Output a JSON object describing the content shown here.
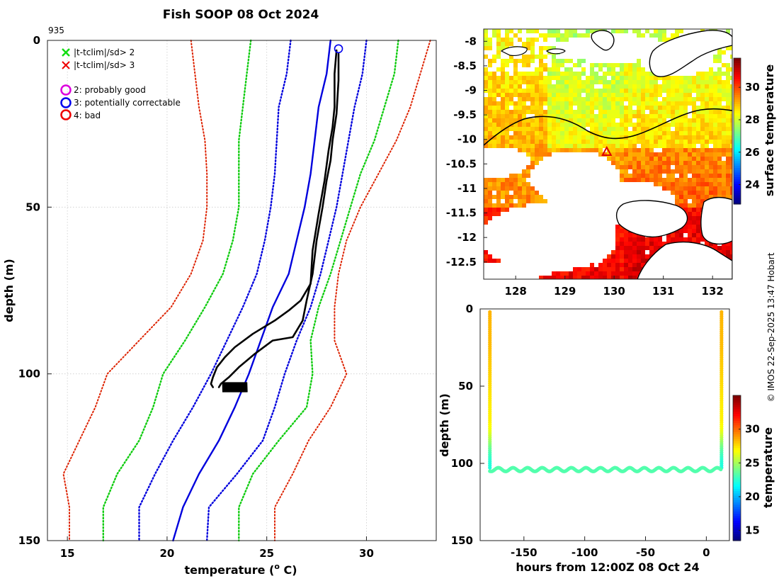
{
  "title": "Fish SOOP 08 Oct 2024",
  "profile_id": "935",
  "credit": "© IMOS 22-Sep-2025 13:47 Hobart",
  "colors": {
    "profile": "#000000",
    "clim": "#0000dd",
    "sd2": "#0000dd",
    "sd3": "#11cc11",
    "sd5": "#dd2200",
    "qc2": "#dd00dd",
    "qc3": "#0000ee",
    "qc4": "#ee0000",
    "x_green": "#11dd11",
    "x_red": "#ee0000"
  },
  "legend": {
    "flag2": "|t-tclim|/sd> 2",
    "flag3": "|t-tclim|/sd> 3",
    "qc2": "2: probably good",
    "qc3": "3: potentially correctable",
    "qc4": "4: bad"
  },
  "chart_data": [
    {
      "type": "line",
      "name": "temperature-profile",
      "xlabel": "temperature (o C)",
      "xlabel_main": "temperature (",
      "xlabel_sup": "o",
      "xlabel_end": " C)",
      "ylabel": "depth (m)",
      "xlim": [
        14,
        33.5
      ],
      "ylim": [
        150,
        0
      ],
      "xticks": [
        15,
        20,
        25,
        30
      ],
      "yticks": [
        0,
        50,
        100,
        150
      ],
      "grid": true,
      "series": [
        {
          "name": "climatology",
          "style": "solid-blue",
          "points": [
            [
              28.2,
              0
            ],
            [
              28,
              10
            ],
            [
              27.6,
              20
            ],
            [
              27.4,
              30
            ],
            [
              27.2,
              40
            ],
            [
              26.9,
              50
            ],
            [
              26.5,
              60
            ],
            [
              26.1,
              70
            ],
            [
              25.3,
              80
            ],
            [
              24.7,
              90
            ],
            [
              24.1,
              100
            ],
            [
              23.4,
              110
            ],
            [
              22.6,
              120
            ],
            [
              21.6,
              130
            ],
            [
              20.8,
              140
            ],
            [
              20.3,
              150
            ]
          ]
        },
        {
          "name": "clim-minus-2sd",
          "style": "dotted-blue",
          "points": [
            [
              26.2,
              0
            ],
            [
              26,
              10
            ],
            [
              25.6,
              20
            ],
            [
              25.5,
              30
            ],
            [
              25.4,
              40
            ],
            [
              25.2,
              50
            ],
            [
              24.9,
              60
            ],
            [
              24.5,
              70
            ],
            [
              23.8,
              80
            ],
            [
              23,
              90
            ],
            [
              22.2,
              100
            ],
            [
              21.3,
              110
            ],
            [
              20.3,
              120
            ],
            [
              19.4,
              130
            ],
            [
              18.6,
              140
            ],
            [
              18.6,
              150
            ]
          ]
        },
        {
          "name": "clim-plus-2sd",
          "style": "dotted-blue",
          "points": [
            [
              30,
              0
            ],
            [
              29.8,
              10
            ],
            [
              29.4,
              20
            ],
            [
              29.1,
              30
            ],
            [
              28.8,
              40
            ],
            [
              28.5,
              50
            ],
            [
              28.1,
              60
            ],
            [
              27.7,
              70
            ],
            [
              27.2,
              80
            ],
            [
              26.5,
              90
            ],
            [
              25.9,
              100
            ],
            [
              25.4,
              110
            ],
            [
              24.8,
              120
            ],
            [
              23.5,
              130
            ],
            [
              22.1,
              140
            ],
            [
              22,
              150
            ]
          ]
        },
        {
          "name": "clim-minus-3sd",
          "style": "dotted-green",
          "points": [
            [
              24.2,
              0
            ],
            [
              24,
              10
            ],
            [
              23.8,
              20
            ],
            [
              23.6,
              30
            ],
            [
              23.6,
              40
            ],
            [
              23.6,
              50
            ],
            [
              23.3,
              60
            ],
            [
              22.8,
              70
            ],
            [
              21.9,
              80
            ],
            [
              20.9,
              90
            ],
            [
              19.8,
              100
            ],
            [
              19.3,
              110
            ],
            [
              18.6,
              120
            ],
            [
              17.5,
              130
            ],
            [
              16.8,
              140
            ],
            [
              16.8,
              150
            ]
          ]
        },
        {
          "name": "clim-plus-3sd",
          "style": "dotted-green",
          "points": [
            [
              31.6,
              0
            ],
            [
              31.4,
              10
            ],
            [
              30.9,
              20
            ],
            [
              30.4,
              30
            ],
            [
              29.7,
              40
            ],
            [
              29.2,
              50
            ],
            [
              28.7,
              60
            ],
            [
              28.2,
              70
            ],
            [
              27.6,
              80
            ],
            [
              27.2,
              90
            ],
            [
              27.3,
              100
            ],
            [
              27,
              110
            ],
            [
              25.6,
              120
            ],
            [
              24.3,
              130
            ],
            [
              23.6,
              140
            ],
            [
              23.6,
              150
            ]
          ]
        },
        {
          "name": "clim-minus-5sd",
          "style": "dotted-red",
          "points": [
            [
              21.2,
              0
            ],
            [
              21.4,
              10
            ],
            [
              21.6,
              20
            ],
            [
              21.9,
              30
            ],
            [
              22,
              40
            ],
            [
              22,
              50
            ],
            [
              21.8,
              60
            ],
            [
              21.2,
              70
            ],
            [
              20.2,
              80
            ],
            [
              18.6,
              90
            ],
            [
              17,
              100
            ],
            [
              16.4,
              110
            ],
            [
              15.6,
              120
            ],
            [
              14.8,
              130
            ],
            [
              15.1,
              140
            ],
            [
              15.1,
              150
            ]
          ]
        },
        {
          "name": "clim-plus-5sd",
          "style": "dotted-red",
          "points": [
            [
              33.2,
              0
            ],
            [
              32.7,
              10
            ],
            [
              32.2,
              20
            ],
            [
              31.5,
              30
            ],
            [
              30.6,
              40
            ],
            [
              29.7,
              50
            ],
            [
              29,
              60
            ],
            [
              28.6,
              70
            ],
            [
              28.4,
              80
            ],
            [
              28.4,
              90
            ],
            [
              29,
              100
            ],
            [
              28.2,
              110
            ],
            [
              27.1,
              120
            ],
            [
              26.3,
              130
            ],
            [
              25.4,
              140
            ],
            [
              25.4,
              150
            ]
          ]
        },
        {
          "name": "profile-descent",
          "style": "solid-black",
          "points": [
            [
              28.5,
              3
            ],
            [
              28.4,
              10
            ],
            [
              28.4,
              20
            ],
            [
              28.3,
              26
            ],
            [
              28.1,
              33
            ],
            [
              27.9,
              42
            ],
            [
              27.6,
              52
            ],
            [
              27.3,
              63
            ],
            [
              27.2,
              73
            ],
            [
              26.7,
              78
            ],
            [
              26.1,
              81
            ],
            [
              25.4,
              84
            ],
            [
              24.3,
              88
            ],
            [
              23.4,
              92
            ],
            [
              22.9,
              95
            ],
            [
              22.5,
              98
            ],
            [
              22.3,
              101
            ],
            [
              22.2,
              103
            ],
            [
              22.3,
              104
            ]
          ]
        },
        {
          "name": "profile-ascent",
          "style": "solid-black",
          "points": [
            [
              28.6,
              4
            ],
            [
              28.6,
              12
            ],
            [
              28.5,
              22
            ],
            [
              28.3,
              30
            ],
            [
              28.2,
              36
            ],
            [
              28,
              42
            ],
            [
              27.8,
              50
            ],
            [
              27.5,
              60
            ],
            [
              27.3,
              70
            ],
            [
              27,
              78
            ],
            [
              26.8,
              84
            ],
            [
              26.3,
              89
            ],
            [
              25.3,
              90
            ],
            [
              24.4,
              94
            ],
            [
              23.6,
              98
            ],
            [
              23.1,
              101
            ],
            [
              22.7,
              103
            ],
            [
              22.6,
              104
            ]
          ]
        }
      ],
      "bottom_cluster": {
        "depth_min": 102.5,
        "depth_max": 105.5,
        "t_min": 22.8,
        "t_max": 24.0
      },
      "qc_marker": {
        "x": 28.6,
        "y": 2.5,
        "flag": "3: potentially correctable"
      }
    },
    {
      "type": "heatmap",
      "name": "sst-map",
      "xticks": [
        128,
        129,
        130,
        131,
        132
      ],
      "yticks": [
        -8,
        -8.5,
        -9,
        -9.5,
        -10,
        -10.5,
        -11,
        -11.5,
        -12,
        -12.5
      ],
      "xlim": [
        127.35,
        132.4
      ],
      "ylim": [
        -12.85,
        -7.75
      ],
      "colorbar_label": "surface temperature",
      "colorbar_ticks": [
        24,
        26,
        28,
        30
      ],
      "colorbar_range": [
        22.8,
        31.8
      ],
      "marker": {
        "lon": 129.85,
        "lat": -10.25,
        "symbol": "triangle"
      }
    },
    {
      "type": "scatter",
      "name": "depth-time",
      "xlabel": "hours from 12:00Z 08 Oct 24",
      "ylabel": "depth (m)",
      "xlim": [
        -186,
        19
      ],
      "ylim": [
        150,
        0
      ],
      "xticks": [
        -150,
        -100,
        -50,
        0
      ],
      "yticks": [
        0,
        50,
        100,
        150
      ],
      "colorbar_label": "temperature",
      "colorbar_ticks": [
        15,
        20,
        25,
        30
      ],
      "colorbar_range": [
        13.5,
        35
      ],
      "descent_hour": -178,
      "ascent_hour": 12.5,
      "bottom_depth": 104,
      "wave_amplitude": 1.2,
      "wave_period_hours": 12
    }
  ]
}
